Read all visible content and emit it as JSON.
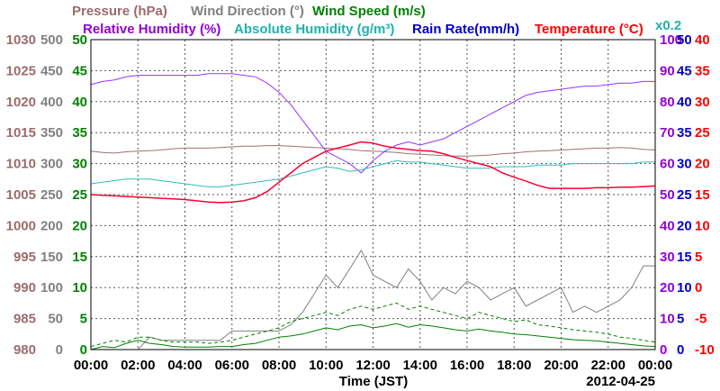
{
  "chart_data": {
    "type": "line",
    "x_ticks": [
      "00:00",
      "02:00",
      "04:00",
      "06:00",
      "08:00",
      "10:00",
      "12:00",
      "14:00",
      "16:00",
      "18:00",
      "20:00",
      "22:00",
      "00:00"
    ],
    "xlabel": "Time (JST)",
    "date": "2012-04-25",
    "rain_scale_note": "x0.2",
    "x_hours": [
      0,
      0.5,
      1,
      1.5,
      2,
      2.5,
      3,
      3.5,
      4,
      4.5,
      5,
      5.5,
      6,
      6.5,
      7,
      7.5,
      8,
      8.5,
      9,
      9.5,
      10,
      10.5,
      11,
      11.5,
      12,
      12.5,
      13,
      13.5,
      14,
      14.5,
      15,
      15.5,
      16,
      16.5,
      17,
      17.5,
      18,
      18.5,
      19,
      19.5,
      20,
      20.5,
      21,
      21.5,
      22,
      22.5,
      23,
      23.5,
      24
    ],
    "axes": [
      {
        "name": "pressure",
        "side": "left",
        "order": 1,
        "range": [
          980,
          1030
        ],
        "ticks": [
          "1030",
          "1025",
          "1020",
          "1015",
          "1010",
          "1005",
          "1000",
          "995",
          "990",
          "985",
          "980"
        ],
        "color": "#9c6b6b"
      },
      {
        "name": "wind_direction",
        "side": "left",
        "order": 2,
        "range": [
          0,
          500
        ],
        "ticks": [
          "500",
          "450",
          "400",
          "350",
          "300",
          "250",
          "200",
          "150",
          "100",
          "50",
          "0"
        ],
        "color": "#808080"
      },
      {
        "name": "wind_speed",
        "side": "left",
        "order": 3,
        "range": [
          0,
          50
        ],
        "ticks": [
          "50",
          "45",
          "40",
          "35",
          "30",
          "25",
          "20",
          "15",
          "10",
          "5",
          "0"
        ],
        "color": "#008000"
      },
      {
        "name": "humidity",
        "side": "right",
        "order": 1,
        "range": [
          0,
          100
        ],
        "ticks": [
          "100",
          "90",
          "80",
          "70",
          "60",
          "50",
          "40",
          "30",
          "20",
          "10",
          "0"
        ],
        "color": "#9400d3"
      },
      {
        "name": "rain_rate",
        "side": "right",
        "order": 2,
        "range": [
          0,
          50
        ],
        "ticks": [
          "50",
          "45",
          "40",
          "35",
          "30",
          "25",
          "20",
          "15",
          "10",
          "5",
          "0"
        ],
        "color": "#0000cc"
      },
      {
        "name": "temperature",
        "side": "right",
        "order": 3,
        "range": [
          -10,
          40
        ],
        "ticks": [
          "40",
          "35",
          "30",
          "25",
          "20",
          "15",
          "10",
          "5",
          "0",
          "-5",
          "-10"
        ],
        "color": "#ff0000"
      }
    ],
    "series": [
      {
        "name": "Pressure (hPa)",
        "axis": "pressure",
        "color": "#a07070",
        "style": "solid",
        "values": [
          1012,
          1011.8,
          1011.7,
          1011.9,
          1012,
          1012.1,
          1012.2,
          1012.4,
          1012.5,
          1012.5,
          1012.5,
          1012.6,
          1012.7,
          1012.8,
          1012.8,
          1012.9,
          1012.9,
          1012.8,
          1012.7,
          1012.6,
          1012.5,
          1012.4,
          1012.3,
          1012.1,
          1012,
          1011.9,
          1011.8,
          1011.6,
          1011.5,
          1011.4,
          1011.3,
          1011.2,
          1011.2,
          1011.3,
          1011.4,
          1011.6,
          1011.7,
          1011.9,
          1012,
          1012.1,
          1012.2,
          1012.3,
          1012.4,
          1012.5,
          1012.5,
          1012.6,
          1012.5,
          1012.3,
          1012.2
        ]
      },
      {
        "name": "Wind Direction (°)",
        "axis": "wind_direction",
        "color": "#808080",
        "style": "solid",
        "values": [
          0,
          0,
          0,
          0,
          0,
          20,
          15,
          15,
          15,
          15,
          15,
          15,
          30,
          30,
          30,
          30,
          30,
          40,
          60,
          90,
          120,
          100,
          130,
          160,
          120,
          110,
          100,
          130,
          110,
          80,
          100,
          90,
          110,
          100,
          80,
          90,
          100,
          70,
          80,
          90,
          100,
          60,
          70,
          60,
          70,
          80,
          100,
          135,
          135
        ]
      },
      {
        "name": "Wind Speed (m/s)",
        "axis": "wind_speed",
        "color": "#008000",
        "style": "solid",
        "values": [
          0,
          0.5,
          0.3,
          1,
          1.5,
          1,
          0.8,
          0.5,
          0.4,
          0.4,
          0.4,
          0.5,
          0.5,
          0.8,
          1,
          1.5,
          2,
          2.2,
          2.5,
          3,
          3.5,
          3.2,
          3.8,
          4,
          3.5,
          3.8,
          4.2,
          3.6,
          4,
          3.8,
          3.5,
          3.2,
          3,
          3.3,
          3,
          2.8,
          2.5,
          2.4,
          2.2,
          2,
          1.8,
          1.6,
          1.5,
          1.4,
          1.2,
          1,
          0.8,
          0.6,
          0.5
        ]
      },
      {
        "name": "Wind Speed gust",
        "axis": "wind_speed",
        "color": "#008000",
        "style": "dashed",
        "values": [
          0.5,
          1,
          1.5,
          1.2,
          2,
          2,
          1.5,
          1.2,
          1.2,
          1.2,
          1,
          1.2,
          1.5,
          2,
          2.5,
          3,
          3.5,
          4.5,
          5,
          5.5,
          6,
          5.5,
          6.5,
          7,
          6.5,
          7,
          7.5,
          6.5,
          7,
          6.5,
          6,
          5.5,
          5,
          6,
          5.5,
          5,
          4.5,
          4.8,
          4,
          3.8,
          3.5,
          3.2,
          3,
          2.8,
          2.5,
          2,
          1.8,
          1.5,
          1.2
        ]
      },
      {
        "name": "Relative Humidity (%)",
        "axis": "humidity",
        "color": "#9933ff",
        "style": "solid",
        "values": [
          85.5,
          86.5,
          87,
          88,
          88.5,
          88.5,
          88.5,
          88.5,
          88.5,
          88.5,
          89,
          89,
          89,
          88.5,
          88,
          86,
          83,
          79,
          74,
          69,
          64,
          62,
          60,
          57,
          61,
          64,
          66,
          67,
          66,
          67,
          68,
          70,
          72,
          74,
          76,
          78,
          80,
          82,
          83,
          83.5,
          84,
          84.5,
          85,
          85,
          85.5,
          86,
          86,
          86.5,
          86.5
        ]
      },
      {
        "name": "Absolute Humidity (g/m³)",
        "axis": "humidity",
        "color": "#33bbbb",
        "style": "solid",
        "values": [
          53.5,
          54,
          54.5,
          55,
          55,
          55,
          54.5,
          54,
          53.5,
          53,
          52.5,
          52.5,
          53,
          53.5,
          54,
          54.5,
          55,
          56,
          57,
          58,
          59,
          58.5,
          57.5,
          58,
          59,
          60,
          61,
          60.5,
          60.5,
          60,
          59.5,
          59,
          58.5,
          58.5,
          58.5,
          59,
          59,
          59,
          59.5,
          59.5,
          59.5,
          60,
          60,
          60,
          60,
          60,
          60,
          60.5,
          60.5
        ]
      },
      {
        "name": "Rain Rate(mm/h)",
        "axis": "rain_rate",
        "color": "#0000cc",
        "style": "solid",
        "values": [
          0,
          0,
          0,
          0,
          0,
          0,
          0,
          0,
          0,
          0,
          0,
          0,
          0,
          0,
          0,
          0,
          0,
          0,
          0,
          0,
          0,
          0,
          0,
          0,
          0,
          0,
          0,
          0,
          0,
          0,
          0,
          0,
          0,
          0,
          0,
          0,
          0,
          0,
          0,
          0,
          0,
          0,
          0,
          0,
          0,
          0,
          0,
          0,
          0
        ]
      },
      {
        "name": "Temperature (°C)",
        "axis": "temperature",
        "color": "#ff0033",
        "style": "solid",
        "values": [
          15,
          14.9,
          14.8,
          14.7,
          14.6,
          14.5,
          14.4,
          14.3,
          14.2,
          14,
          13.8,
          13.7,
          13.8,
          14,
          14.5,
          15.5,
          17,
          18.5,
          20,
          21,
          22,
          22.5,
          23,
          23.5,
          23.3,
          22.8,
          22.5,
          22.3,
          22.1,
          22,
          21.6,
          21,
          20.5,
          20,
          19.5,
          18.5,
          17.8,
          17.2,
          16.5,
          16,
          16,
          16,
          16,
          16.1,
          16.1,
          16.2,
          16.2,
          16.3,
          16.4
        ]
      }
    ],
    "legend": {
      "row1": [
        {
          "text": "Pressure (hPa)",
          "color": "#9c6b6b"
        },
        {
          "text": "Wind Direction (°)",
          "color": "#808080"
        },
        {
          "text": "Wind Speed (m/s)",
          "color": "#008000"
        }
      ],
      "row2": [
        {
          "text": "Relative Humidity (%)",
          "color": "#9400d3"
        },
        {
          "text": "Absolute Humidity (g/m³)",
          "color": "#20b2aa"
        },
        {
          "text": "Rain Rate(mm/h)",
          "color": "#0000cc"
        },
        {
          "text": "Temperature (°C)",
          "color": "#ff0000"
        }
      ]
    },
    "grid": true
  }
}
